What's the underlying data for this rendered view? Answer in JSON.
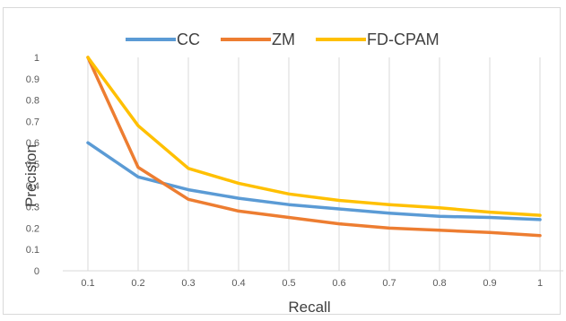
{
  "chart_data": {
    "type": "line",
    "title": "",
    "xlabel": "Recall",
    "ylabel": "Precision",
    "x": [
      0.1,
      0.2,
      0.3,
      0.4,
      0.5,
      0.6,
      0.7,
      0.8,
      0.9,
      1
    ],
    "x_tick_labels": [
      "0.1",
      "0.2",
      "0.3",
      "0.4",
      "0.5",
      "0.6",
      "0.7",
      "0.8",
      "0.9",
      "1"
    ],
    "y_tick_labels": [
      "0",
      "0.1",
      "0.2",
      "0.3",
      "0.4",
      "0.5",
      "0.6",
      "0.7",
      "0.8",
      "0.9",
      "1"
    ],
    "ylim": [
      0,
      1
    ],
    "grid": "vertical",
    "legend_position": "top",
    "series": [
      {
        "name": "CC",
        "color": "#5b9bd5",
        "values": [
          0.6,
          0.44,
          0.38,
          0.34,
          0.31,
          0.29,
          0.27,
          0.255,
          0.25,
          0.24
        ]
      },
      {
        "name": "ZM",
        "color": "#ed7d31",
        "values": [
          1.0,
          0.485,
          0.335,
          0.28,
          0.25,
          0.22,
          0.2,
          0.19,
          0.18,
          0.165
        ]
      },
      {
        "name": "FD-CPAM",
        "color": "#ffc000",
        "values": [
          1.0,
          0.68,
          0.48,
          0.41,
          0.36,
          0.33,
          0.31,
          0.295,
          0.275,
          0.26
        ]
      }
    ]
  }
}
